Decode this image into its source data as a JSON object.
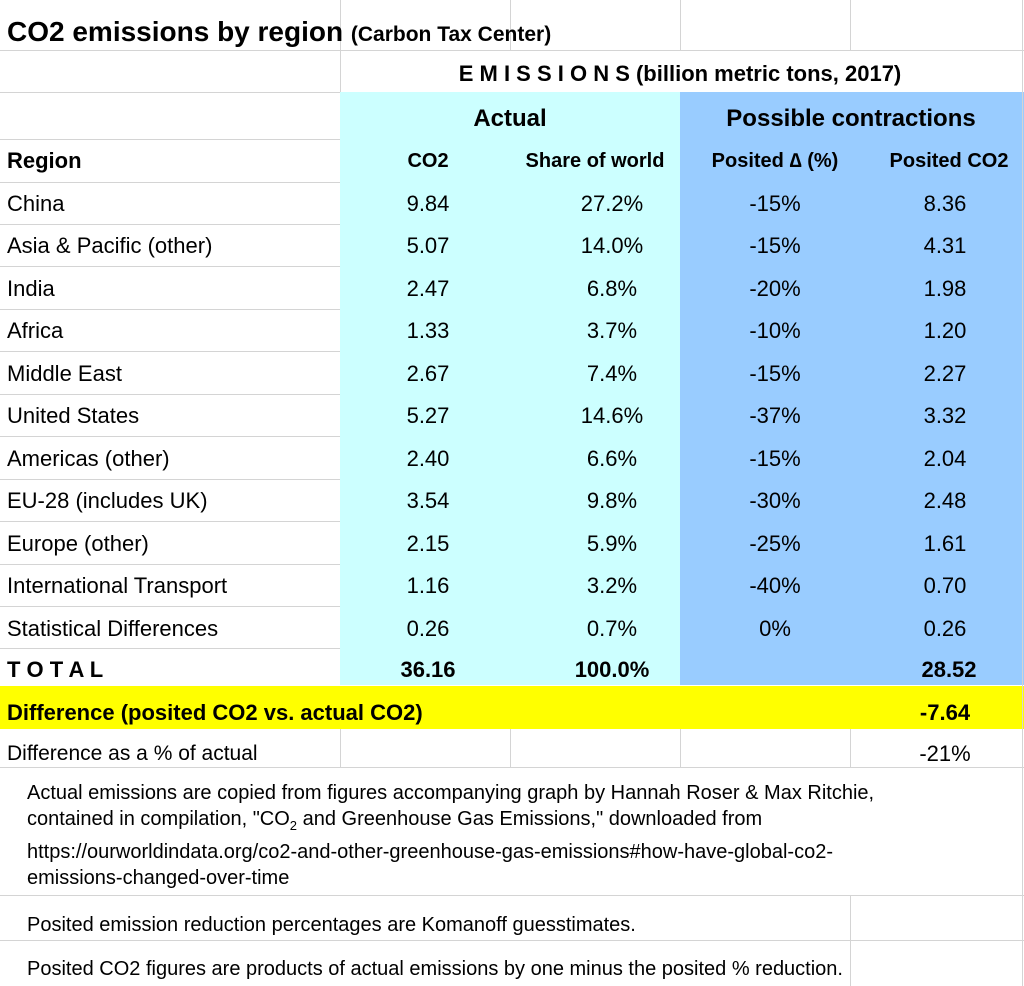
{
  "title": {
    "main": "CO2 emissions by region",
    "source": "(Carbon Tax Center)"
  },
  "header": {
    "emissions": "E M I S S I O N S (billion metric tons, 2017)",
    "actual": "Actual",
    "possible": "Possible contractions",
    "col_region": "Region",
    "col_co2": "CO2",
    "col_share": "Share of world",
    "col_delta": "Posited ∆ (%)",
    "col_posited": "Posited CO2"
  },
  "rows": [
    {
      "region": "China",
      "co2": "9.84",
      "share": "27.2%",
      "delta": "-15%",
      "posited": "8.36"
    },
    {
      "region": "Asia & Pacific (other)",
      "co2": "5.07",
      "share": "14.0%",
      "delta": "-15%",
      "posited": "4.31"
    },
    {
      "region": "India",
      "co2": "2.47",
      "share": "6.8%",
      "delta": "-20%",
      "posited": "1.98"
    },
    {
      "region": "Africa",
      "co2": "1.33",
      "share": "3.7%",
      "delta": "-10%",
      "posited": "1.20"
    },
    {
      "region": "Middle East",
      "co2": "2.67",
      "share": "7.4%",
      "delta": "-15%",
      "posited": "2.27"
    },
    {
      "region": "United States",
      "co2": "5.27",
      "share": "14.6%",
      "delta": "-37%",
      "posited": "3.32"
    },
    {
      "region": "Americas (other)",
      "co2": "2.40",
      "share": "6.6%",
      "delta": "-15%",
      "posited": "2.04"
    },
    {
      "region": "EU-28 (includes UK)",
      "co2": "3.54",
      "share": "9.8%",
      "delta": "-30%",
      "posited": "2.48"
    },
    {
      "region": "Europe (other)",
      "co2": "2.15",
      "share": "5.9%",
      "delta": "-25%",
      "posited": "1.61"
    },
    {
      "region": "International Transport",
      "co2": "1.16",
      "share": "3.2%",
      "delta": "-40%",
      "posited": "0.70"
    },
    {
      "region": "Statistical Differences",
      "co2": "0.26",
      "share": "0.7%",
      "delta": "0%",
      "posited": "0.26"
    }
  ],
  "total": {
    "label": "T O T A L",
    "co2": "36.16",
    "share": "100.0%",
    "posited": "28.52"
  },
  "difference": {
    "label": "Difference (posited CO2 vs. actual CO2)",
    "value": "-7.64"
  },
  "difference_pct": {
    "label": "Difference as a % of actual",
    "value": "-21%"
  },
  "notes": {
    "source_line1": "Actual emissions are copied from figures accompanying graph by Hannah Roser & Max Ritchie,",
    "source_line2a": "contained in compilation, \"CO",
    "source_line2_sub": "2",
    "source_line2b": " and Greenhouse Gas Emissions,\" downloaded from",
    "source_line3": "https://ourworldindata.org/co2-and-other-greenhouse-gas-emissions#how-have-global-co2-",
    "source_line4": "emissions-changed-over-time",
    "guess": "Posited emission reduction percentages are Komanoff guesstimates.",
    "method": "Posited CO2 figures are products of actual emissions by one minus the posited % reduction."
  },
  "colors": {
    "actual_fill": "#ccffff",
    "possible_fill": "#99ccff",
    "difference_fill": "#ffff00",
    "gridline": "#d4d4d4"
  }
}
